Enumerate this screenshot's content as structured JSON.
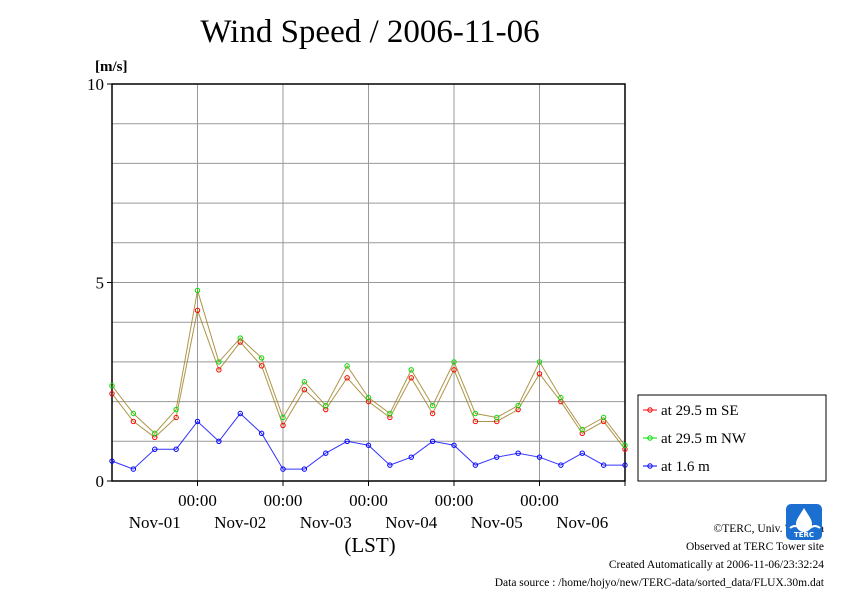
{
  "chart_data": {
    "type": "line",
    "title": "Wind Speed / 2006-11-06",
    "ylabel": "[m/s]",
    "xlabel": "(LST)",
    "ylim": [
      0,
      10
    ],
    "xlim_days": [
      0,
      6
    ],
    "y_ticks": [
      {
        "v": 0,
        "label": "0"
      },
      {
        "v": 5,
        "label": "5"
      },
      {
        "v": 10,
        "label": "10"
      }
    ],
    "x_ticks": [
      {
        "day": 1,
        "time": "00:00",
        "date": "Nov-01"
      },
      {
        "day": 2,
        "time": "00:00",
        "date": "Nov-02"
      },
      {
        "day": 3,
        "time": "00:00",
        "date": "Nov-03"
      },
      {
        "day": 4,
        "time": "00:00",
        "date": "Nov-04"
      },
      {
        "day": 5,
        "time": "00:00",
        "date": "Nov-05"
      },
      {
        "day": 6,
        "time": "",
        "date": "Nov-06"
      }
    ],
    "grid": true,
    "legend_position": "right",
    "series": [
      {
        "name": "at 29.5 m SE",
        "color": "#ff0000",
        "marker": "circle",
        "x": [
          0.0,
          0.25,
          0.5,
          0.75,
          1.0,
          1.25,
          1.5,
          1.75,
          2.0,
          2.25,
          2.5,
          2.75,
          3.0,
          3.25,
          3.5,
          3.75,
          4.0,
          4.25,
          4.5,
          4.75,
          5.0,
          5.25,
          5.5,
          5.75,
          6.0
        ],
        "y": [
          2.2,
          1.5,
          1.1,
          1.6,
          4.3,
          2.8,
          3.5,
          2.9,
          1.4,
          2.3,
          1.8,
          2.6,
          2.0,
          1.6,
          2.6,
          1.7,
          2.8,
          1.5,
          1.5,
          1.8,
          2.7,
          2.0,
          1.2,
          1.5,
          0.8
        ]
      },
      {
        "name": "at 29.5 m NW",
        "color": "#00dd00",
        "marker": "circle",
        "x": [
          0.0,
          0.25,
          0.5,
          0.75,
          1.0,
          1.25,
          1.5,
          1.75,
          2.0,
          2.25,
          2.5,
          2.75,
          3.0,
          3.25,
          3.5,
          3.75,
          4.0,
          4.25,
          4.5,
          4.75,
          5.0,
          5.25,
          5.5,
          5.75,
          6.0
        ],
        "y": [
          2.4,
          1.7,
          1.2,
          1.8,
          4.8,
          3.0,
          3.6,
          3.1,
          1.6,
          2.5,
          1.9,
          2.9,
          2.1,
          1.7,
          2.8,
          1.9,
          3.0,
          1.7,
          1.6,
          1.9,
          3.0,
          2.1,
          1.3,
          1.6,
          0.9
        ]
      },
      {
        "name": "at 1.6 m",
        "color": "#0000ff",
        "marker": "circle",
        "x": [
          0.0,
          0.25,
          0.5,
          0.75,
          1.0,
          1.25,
          1.5,
          1.75,
          2.0,
          2.25,
          2.5,
          2.75,
          3.0,
          3.25,
          3.5,
          3.75,
          4.0,
          4.25,
          4.5,
          4.75,
          5.0,
          5.25,
          5.5,
          5.75,
          6.0
        ],
        "y": [
          0.5,
          0.3,
          0.8,
          0.8,
          1.5,
          1.0,
          1.7,
          1.2,
          0.3,
          0.3,
          0.7,
          1.0,
          0.9,
          0.4,
          0.6,
          1.0,
          0.9,
          0.4,
          0.6,
          0.7,
          0.6,
          0.4,
          0.7,
          0.4,
          0.4
        ]
      }
    ]
  },
  "credits": {
    "copyright": "©TERC, Univ. Tsukuba",
    "observed": "Observed at TERC Tower site",
    "created": "Created Automatically at 2006-11-06/23:32:24",
    "source": "Data source : /home/hojyo/new/TERC-data/sorted_data/FLUX.30m.dat"
  },
  "logo": {
    "name": "terc-logo",
    "text": "TERC",
    "color": "#1a6fd0"
  }
}
